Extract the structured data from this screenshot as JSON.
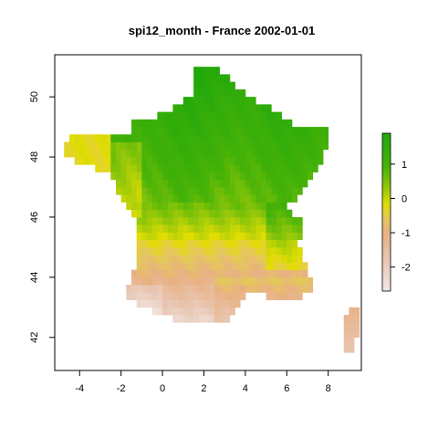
{
  "title": "spi12_month - France 2002-01-01",
  "axes": {
    "x_ticks": [
      -4,
      -2,
      0,
      2,
      4,
      6,
      8
    ],
    "y_ticks": [
      42,
      44,
      46,
      48,
      50
    ],
    "xlim": [
      -5.2,
      9.6
    ],
    "ylim": [
      40.9,
      51.4
    ]
  },
  "legend": {
    "ticks": [
      1,
      0,
      -1,
      -2
    ],
    "range": [
      -2.7,
      1.9
    ],
    "colors": {
      "high": "#21a80b",
      "mid": "#e3dd04",
      "low": "#e8b182",
      "lowest": "#f3e7e6"
    }
  }
}
